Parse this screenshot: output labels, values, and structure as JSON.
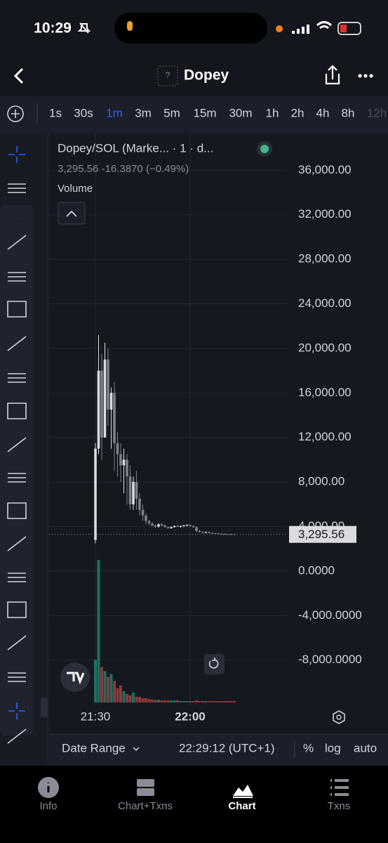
{
  "status_bar": {
    "time": "10:29"
  },
  "header": {
    "title": "Dopey",
    "icon_placeholder": "?"
  },
  "timeframes": [
    {
      "label": "1s"
    },
    {
      "label": "30s"
    },
    {
      "label": "1m",
      "active": true
    },
    {
      "label": "3m"
    },
    {
      "label": "5m"
    },
    {
      "label": "15m"
    },
    {
      "label": "30m"
    },
    {
      "label": "1h"
    },
    {
      "label": "2h"
    },
    {
      "label": "4h"
    },
    {
      "label": "8h"
    },
    {
      "label": "12h",
      "faded": true
    }
  ],
  "chart_data": {
    "type": "candlestick",
    "title": "Dopey/SOL (Marke... · 1 · d...",
    "subtitle": "3,295.56  -16.3870 (−0.49%)",
    "volume_label": "Volume",
    "x": [
      "21:30",
      "21:31",
      "21:32",
      "21:33",
      "21:34",
      "21:35",
      "21:36",
      "21:37",
      "21:38",
      "21:39",
      "21:40",
      "21:41",
      "21:42",
      "21:43",
      "21:44",
      "21:45",
      "21:46",
      "21:47",
      "21:48",
      "21:49",
      "21:50",
      "21:51",
      "21:52",
      "21:53",
      "21:54",
      "21:55",
      "21:56",
      "21:57",
      "21:58",
      "21:59",
      "22:00",
      "22:01",
      "22:02",
      "22:03",
      "22:04",
      "22:05",
      "22:06",
      "22:07",
      "22:08",
      "22:09",
      "22:10",
      "22:11",
      "22:12",
      "22:13",
      "22:14"
    ],
    "open": [
      2800,
      11000,
      18000,
      12000,
      19000,
      14500,
      16000,
      11500,
      10500,
      9500,
      10000,
      8500,
      6000,
      8000,
      6500,
      5500,
      5000,
      4500,
      4300,
      4100,
      4000,
      4200,
      4100,
      3950,
      3850,
      3950,
      4050,
      4000,
      4050,
      4100,
      4150,
      4050,
      3950,
      3600,
      3500,
      3450,
      3500,
      3420,
      3400,
      3380,
      3350,
      3340,
      3320,
      3310,
      3300
    ],
    "high": [
      11500,
      21200,
      19500,
      20500,
      20000,
      16500,
      17000,
      12500,
      11500,
      11000,
      10500,
      9500,
      8500,
      9000,
      7000,
      6000,
      5200,
      4600,
      4400,
      4200,
      4300,
      4300,
      4200,
      4000,
      4000,
      4100,
      4150,
      4100,
      4150,
      4200,
      4200,
      4100,
      4000,
      3700,
      3600,
      3550,
      3550,
      3500,
      3450,
      3420,
      3400,
      3380,
      3350,
      3340,
      3320
    ],
    "low": [
      2500,
      10500,
      10000,
      12000,
      13000,
      11000,
      9000,
      8500,
      8000,
      7000,
      6000,
      5500,
      5500,
      5500,
      5000,
      4500,
      4200,
      4100,
      4000,
      3900,
      3900,
      4000,
      3900,
      3800,
      3800,
      3900,
      3950,
      3900,
      3950,
      4000,
      4000,
      3900,
      3500,
      3450,
      3400,
      3400,
      3400,
      3380,
      3350,
      3330,
      3320,
      3300,
      3290,
      3280,
      3280
    ],
    "close": [
      11000,
      18000,
      12000,
      19000,
      14500,
      16000,
      11500,
      10500,
      9500,
      10000,
      8500,
      6000,
      8000,
      6500,
      5500,
      5000,
      4500,
      4300,
      4100,
      4000,
      4200,
      4100,
      3950,
      3850,
      3950,
      4050,
      4000,
      4050,
      4100,
      4150,
      4050,
      3950,
      3600,
      3500,
      3450,
      3500,
      3420,
      3400,
      3380,
      3350,
      3340,
      3320,
      3310,
      3300,
      3295.56
    ],
    "volume": [
      30,
      100,
      25,
      22,
      18,
      20,
      15,
      10,
      12,
      8,
      6,
      5,
      7,
      4,
      4,
      3,
      3,
      2.5,
      2,
      2,
      2,
      1.5,
      1.5,
      1.5,
      1.5,
      1.5,
      1.5,
      1,
      1,
      1,
      1,
      1,
      1.5,
      1,
      1,
      1,
      1,
      1,
      1,
      1,
      1,
      1,
      1,
      1,
      1
    ],
    "colors": {
      "up": "#d9dbe0",
      "down": "#7d818b",
      "volume_up": "#1f6f63",
      "volume_down": "#8a3a3a"
    },
    "ylim": [
      -11800,
      39300
    ],
    "yticks": [
      {
        "value": 36000,
        "label": "36,000.00"
      },
      {
        "value": 32000,
        "label": "32,000.00"
      },
      {
        "value": 28000,
        "label": "28,000.00"
      },
      {
        "value": 24000,
        "label": "24,000.00"
      },
      {
        "value": 20000,
        "label": "20,000.00"
      },
      {
        "value": 16000,
        "label": "16,000.00"
      },
      {
        "value": 12000,
        "label": "12,000.00"
      },
      {
        "value": 8000,
        "label": "8,000.00"
      },
      {
        "value": 4000,
        "label": "4,000.00"
      },
      {
        "value": 0,
        "label": "0.0000"
      },
      {
        "value": -4000,
        "label": "-4,000.0000"
      },
      {
        "value": -8000,
        "label": "-8,000.0000"
      }
    ],
    "xticks": [
      "21:30",
      "22:00"
    ],
    "price_line": {
      "value": 3295.56,
      "label": "3,295.56"
    },
    "grid": true
  },
  "footer": {
    "date_range": "Date Range",
    "time": "22:29:12 (UTC+1)",
    "percent": "%",
    "log": "log",
    "auto": "auto"
  },
  "tabs": [
    {
      "label": "Info"
    },
    {
      "label": "Chart+Txns"
    },
    {
      "label": "Chart",
      "active": true
    },
    {
      "label": "Txns"
    }
  ]
}
